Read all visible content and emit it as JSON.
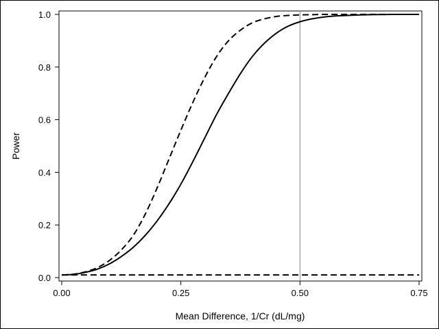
{
  "chart_data": {
    "type": "line",
    "title": "",
    "xlabel": "Mean Difference, 1/Cr (dL/mg)",
    "ylabel": "Power",
    "xlim": [
      0,
      0.75
    ],
    "ylim": [
      0,
      1.0
    ],
    "x_ticks": [
      0.0,
      0.25,
      0.5,
      0.75
    ],
    "x_tick_labels": [
      "0.00",
      "0.25",
      "0.50",
      "0.75"
    ],
    "y_ticks": [
      0.0,
      0.2,
      0.4,
      0.6,
      0.8,
      1.0
    ],
    "y_tick_labels": [
      "0.0",
      "0.2",
      "0.4",
      "0.6",
      "0.8",
      "1.0"
    ],
    "grid": false,
    "reference_lines": [
      {
        "name": "reference-vertical-line",
        "axis": "x",
        "value": 0.5,
        "color": "#888888"
      }
    ],
    "series": [
      {
        "name": "power-solid",
        "style": "solid",
        "color": "#000000",
        "x": [
          0.0,
          0.025,
          0.05,
          0.075,
          0.1,
          0.125,
          0.15,
          0.175,
          0.2,
          0.225,
          0.25,
          0.275,
          0.3,
          0.325,
          0.35,
          0.375,
          0.4,
          0.425,
          0.45,
          0.475,
          0.5,
          0.525,
          0.55,
          0.575,
          0.6,
          0.625,
          0.65,
          0.675,
          0.7,
          0.725,
          0.75
        ],
        "values": [
          0.01,
          0.012,
          0.02,
          0.032,
          0.052,
          0.08,
          0.115,
          0.16,
          0.215,
          0.28,
          0.355,
          0.44,
          0.53,
          0.62,
          0.7,
          0.775,
          0.84,
          0.89,
          0.928,
          0.955,
          0.972,
          0.983,
          0.99,
          0.994,
          0.996,
          0.998,
          0.999,
          0.9995,
          1.0,
          1.0,
          1.0
        ]
      },
      {
        "name": "power-dashed",
        "style": "dashed",
        "color": "#000000",
        "x": [
          0.0,
          0.025,
          0.05,
          0.075,
          0.1,
          0.125,
          0.15,
          0.175,
          0.2,
          0.225,
          0.25,
          0.275,
          0.3,
          0.325,
          0.35,
          0.375,
          0.4,
          0.425,
          0.45,
          0.475,
          0.5,
          0.525,
          0.55,
          0.575,
          0.6,
          0.625,
          0.65,
          0.675,
          0.7,
          0.725,
          0.75
        ],
        "values": [
          0.01,
          0.013,
          0.022,
          0.038,
          0.065,
          0.105,
          0.16,
          0.24,
          0.34,
          0.45,
          0.56,
          0.665,
          0.76,
          0.84,
          0.9,
          0.94,
          0.968,
          0.983,
          0.992,
          0.996,
          0.998,
          0.999,
          1.0,
          1.0,
          1.0,
          1.0,
          1.0,
          1.0,
          1.0,
          1.0,
          1.0
        ]
      },
      {
        "name": "alpha-baseline",
        "style": "dashed",
        "color": "#000000",
        "x": [
          0.0,
          0.75
        ],
        "values": [
          0.01,
          0.01
        ]
      }
    ]
  }
}
